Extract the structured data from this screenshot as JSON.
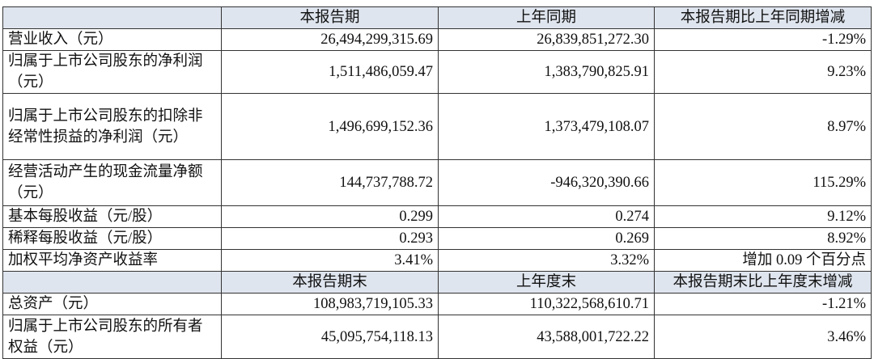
{
  "table": {
    "header": [
      "",
      "本报告期",
      "上年同期",
      "本报告期比上年同期增减"
    ],
    "rows": [
      [
        "营业收入（元）",
        "26,494,299,315.69",
        "26,839,851,272.30",
        "-1.29%"
      ],
      [
        "归属于上市公司股东的净利润（元）",
        "1,511,486,059.47",
        "1,383,790,825.91",
        "9.23%"
      ],
      [
        "归属于上市公司股东的扣除非经常性损益的净利润（元）",
        "1,496,699,152.36",
        "1,373,479,108.07",
        "8.97%"
      ],
      [
        "经营活动产生的现金流量净额（元）",
        "144,737,788.72",
        "-946,320,390.66",
        "115.29%"
      ],
      [
        "基本每股收益（元/股）",
        "0.299",
        "0.274",
        "9.12%"
      ],
      [
        "稀释每股收益（元/股）",
        "0.293",
        "0.269",
        "8.92%"
      ],
      [
        "加权平均净资产收益率",
        "3.41%",
        "3.32%",
        "增加 0.09 个百分点"
      ]
    ],
    "header2": [
      "",
      "本报告期末",
      "上年度末",
      "本报告期末比上年度末增减"
    ],
    "rows2": [
      [
        "总资产（元）",
        "108,983,719,105.33",
        "110,322,568,610.71",
        "-1.21%"
      ],
      [
        "归属于上市公司股东的所有者权益（元）",
        "45,095,754,118.13",
        "43,588,001,722.22",
        "3.46%"
      ]
    ]
  }
}
